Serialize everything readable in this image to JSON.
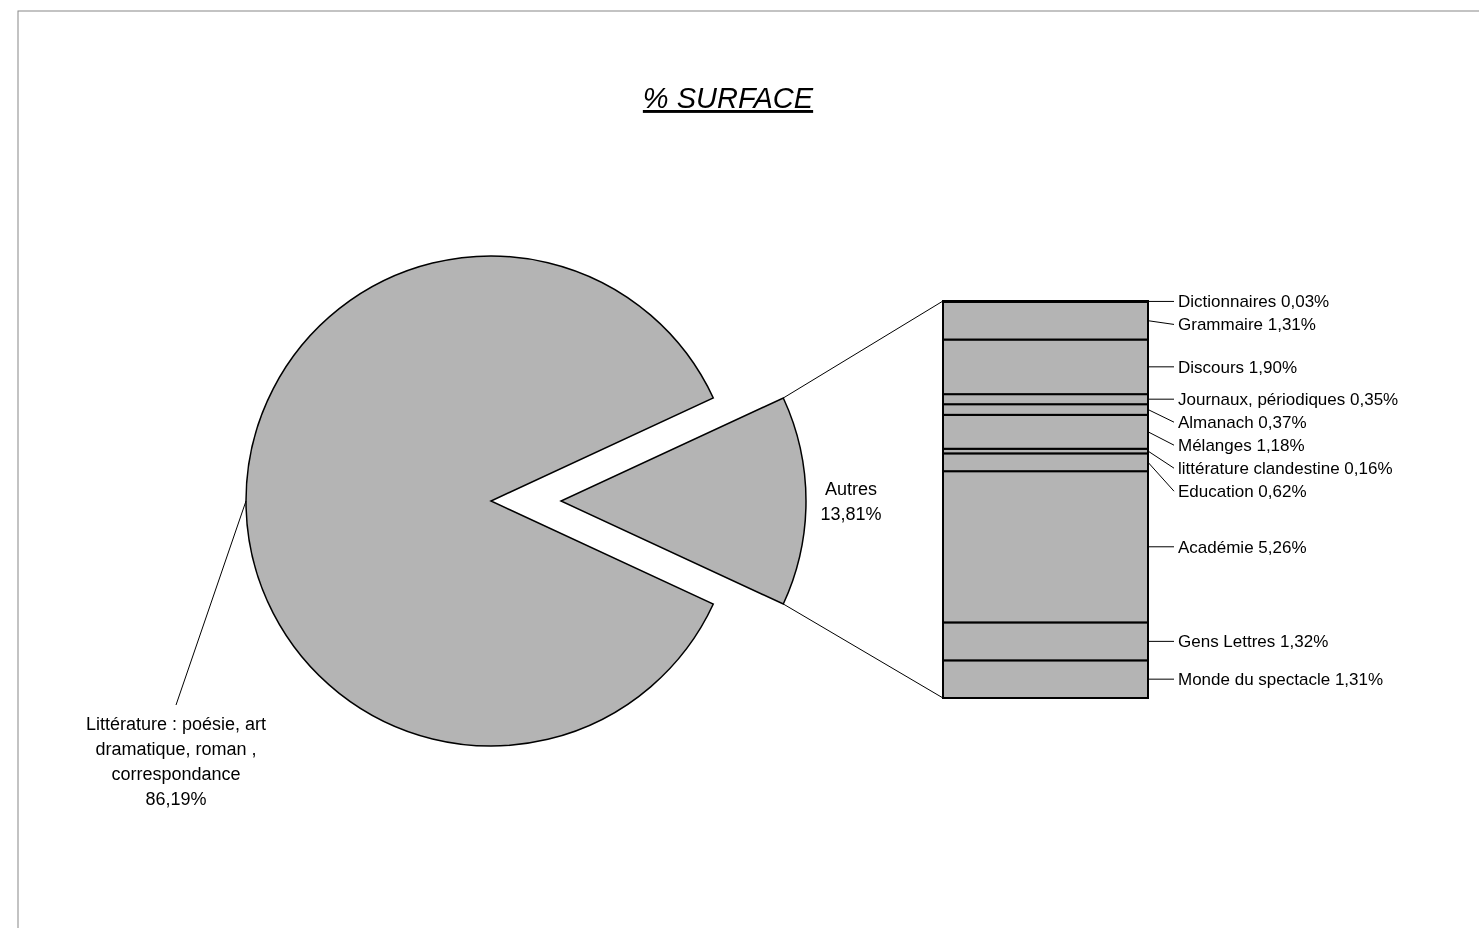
{
  "chart_data": [
    {
      "type": "other",
      "title": "% SURFACE",
      "categories": [
        "Littérature : poésie, art dramatique, roman , correspondance",
        "Autres"
      ],
      "values": [
        86.19,
        13.81
      ],
      "value_labels": [
        "86,19%",
        "13,81%"
      ],
      "colors": [
        "#b4b4b4",
        "#b4b4b4"
      ]
    },
    {
      "type": "other",
      "legend": "right",
      "categories": [
        null
      ],
      "series": [
        {
          "name": "Monde du spectacle",
          "values": [
            1.31
          ],
          "value_labels": [
            "1,31%"
          ]
        },
        {
          "name": "Gens Lettres",
          "values": [
            1.32
          ],
          "value_labels": [
            "1,32%"
          ]
        },
        {
          "name": "Académie",
          "values": [
            5.26
          ],
          "value_labels": [
            "5,26%"
          ]
        },
        {
          "name": "Education",
          "values": [
            0.62
          ],
          "value_labels": [
            "0,62%"
          ]
        },
        {
          "name": "littérature clandestine",
          "values": [
            0.16
          ],
          "value_labels": [
            "0,16%"
          ]
        },
        {
          "name": "Mélanges",
          "values": [
            1.18
          ],
          "value_labels": [
            "1,18%"
          ]
        },
        {
          "name": "Almanach",
          "values": [
            0.37
          ],
          "value_labels": [
            "0,37%"
          ]
        },
        {
          "name": "Journaux, périodiques",
          "values": [
            0.35
          ],
          "value_labels": [
            "0,35%"
          ]
        },
        {
          "name": "Discours",
          "values": [
            1.9
          ],
          "value_labels": [
            "1,90%"
          ]
        },
        {
          "name": "Grammaire",
          "values": [
            1.31
          ],
          "value_labels": [
            "1,31%"
          ]
        },
        {
          "name": "Dictionnaires",
          "values": [
            0.03
          ],
          "value_labels": [
            "0,03%"
          ]
        }
      ]
    }
  ]
}
